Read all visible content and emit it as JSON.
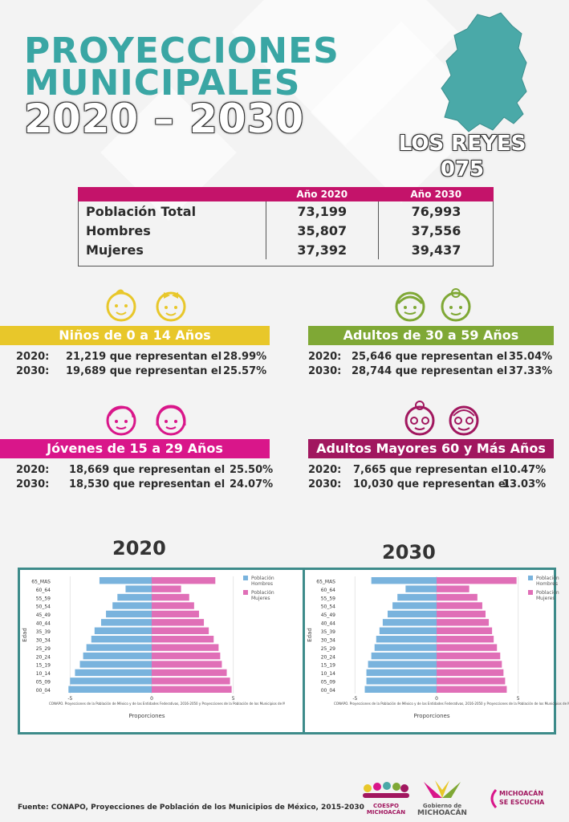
{
  "header": {
    "line1": "PROYECCIONES",
    "line2": "MUNICIPALES",
    "line3": "2020 – 2030"
  },
  "municipio": {
    "name": "LOS REYES",
    "code": "075"
  },
  "table": {
    "columns": [
      "Año 2020",
      "Año 2030"
    ],
    "rows": [
      {
        "label": "Población Total",
        "v2020": "73,199",
        "v2030": "76,993"
      },
      {
        "label": "Hombres",
        "v2020": "35,807",
        "v2030": "37,556"
      },
      {
        "label": "Mujeres",
        "v2020": "37,392",
        "v2030": "39,437"
      }
    ]
  },
  "groups": {
    "ninos": {
      "title": "Niños de 0 a 14 Años",
      "color": "#e8c72a",
      "r1": {
        "year": "2020:",
        "text": "21,219 que representan el",
        "pct": "28.99%"
      },
      "r2": {
        "year": "2030:",
        "text": "19,689 que representan el",
        "pct": "25.57%"
      }
    },
    "adultos": {
      "title": "Adultos de 30 a 59 Años",
      "color": "#7fa835",
      "r1": {
        "year": "2020:",
        "text": "25,646 que representan el",
        "pct": "35.04%"
      },
      "r2": {
        "year": "2030:",
        "text": "28,744 que representan el",
        "pct": "37.33%"
      }
    },
    "jovenes": {
      "title": "Jóvenes de 15 a 29 Años",
      "color": "#d9168a",
      "r1": {
        "year": "2020:",
        "text": "18,669 que representan el",
        "pct": "25.50%"
      },
      "r2": {
        "year": "2030:",
        "text": "18,530 que representan el",
        "pct": "24.07%"
      }
    },
    "mayores": {
      "title": "Adultos Mayores  60 y Más Años",
      "color": "#a1175f",
      "r1": {
        "year": "2020:",
        "text": "7,665 que representan el",
        "pct": "10.47%"
      },
      "r2": {
        "year": "2030:",
        "text": "10,030 que representan el",
        "pct": "13.03%"
      }
    }
  },
  "chart_titles": {
    "left": "2020",
    "right": "2030"
  },
  "chart_data": [
    {
      "type": "bar",
      "orientation": "horizontal-pyramid",
      "categories": [
        "00_04",
        "05_09",
        "10_14",
        "15_19",
        "20_24",
        "25_29",
        "30_34",
        "35_39",
        "40_44",
        "45_49",
        "50_54",
        "55_59",
        "60_64",
        "65_MAS"
      ],
      "series": [
        {
          "name": "Población Hombres",
          "color": "#79b3dd",
          "values": [
            -5.1,
            -5.0,
            -4.7,
            -4.4,
            -4.2,
            -4.0,
            -3.7,
            -3.5,
            -3.1,
            -2.8,
            -2.4,
            -2.1,
            -1.6,
            -3.2
          ]
        },
        {
          "name": "Población Mujeres",
          "color": "#e06fb7",
          "values": [
            4.9,
            4.8,
            4.6,
            4.3,
            4.2,
            4.1,
            3.8,
            3.5,
            3.2,
            2.9,
            2.6,
            2.3,
            1.8,
            3.9
          ]
        }
      ],
      "xlabel": "Proporciones",
      "ylabel": "Edad",
      "xlim": [
        -6,
        6
      ],
      "xticks": [
        "-5",
        "0",
        "5"
      ],
      "source_note": "CONAPO. Proyecciones de la Población de México y de las Entidades Federativas, 2016-2050 y Proyecciones de la Población de los Municipios de Méx",
      "legend": "top-right"
    },
    {
      "type": "bar",
      "orientation": "horizontal-pyramid",
      "categories": [
        "00_04",
        "05_09",
        "10_14",
        "15_19",
        "20_24",
        "25_29",
        "30_34",
        "35_39",
        "40_44",
        "45_49",
        "50_54",
        "55_59",
        "60_64",
        "65_MAS"
      ],
      "series": [
        {
          "name": "Población Hombres",
          "color": "#79b3dd",
          "values": [
            -4.4,
            -4.3,
            -4.3,
            -4.2,
            -4.0,
            -3.8,
            -3.7,
            -3.5,
            -3.3,
            -3.0,
            -2.7,
            -2.4,
            -1.9,
            -4.0
          ]
        },
        {
          "name": "Población Mujeres",
          "color": "#e06fb7",
          "values": [
            4.3,
            4.2,
            4.1,
            4.0,
            3.9,
            3.7,
            3.5,
            3.4,
            3.2,
            3.0,
            2.8,
            2.5,
            2.0,
            4.9
          ]
        }
      ],
      "xlabel": "Proporciones",
      "ylabel": "Edad",
      "xlim": [
        -6,
        6
      ],
      "xticks": [
        "-5",
        "0",
        "5"
      ],
      "source_note": "CONAPO. Proyecciones de la Población de México y de las Entidades Federativas, 2016-2050 y Proyecciones de la Población de los Municipios de Méx",
      "legend": "top-right"
    }
  ],
  "footer": {
    "source": "Fuente: CONAPO, Proyecciones de Población de los Municipios de México, 2015-2030"
  },
  "logos": {
    "coespo": "COESPO MICHOACÁN",
    "gobierno_top": "Gobierno de",
    "gobierno_bottom": "MICHOACÁN",
    "escucha_top": "MICHOACÁN",
    "escucha_bottom": "SE ESCUCHA"
  }
}
